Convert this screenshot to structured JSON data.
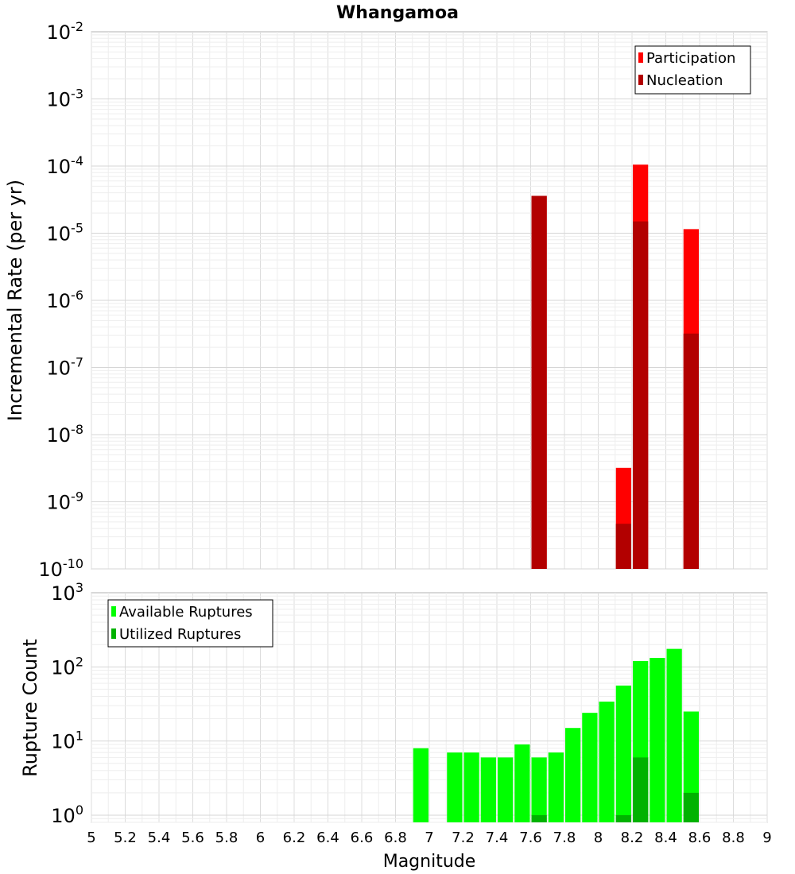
{
  "chart_data": [
    {
      "type": "bar",
      "title": "Whangamoa",
      "xlabel": "",
      "ylabel": "Incremental Rate (per yr)",
      "yscale": "log",
      "ylim": [
        1e-10,
        0.01
      ],
      "xlim": [
        5,
        9
      ],
      "bar_width": 0.1,
      "grid": true,
      "legend_position": "top-right",
      "series": [
        {
          "name": "Participation",
          "color": "#ff0000",
          "x": [
            7.65,
            8.15,
            8.25,
            8.55
          ],
          "values": [
            3.6e-05,
            3.2e-09,
            0.000105,
            1.15e-05
          ]
        },
        {
          "name": "Nucleation",
          "color": "#b20000",
          "x": [
            7.65,
            8.15,
            8.25,
            8.55
          ],
          "values": [
            3.6e-05,
            4.7e-10,
            1.5e-05,
            3.2e-07
          ]
        }
      ]
    },
    {
      "type": "bar",
      "title": "",
      "xlabel": "Magnitude",
      "ylabel": "Rupture Count",
      "yscale": "log",
      "ylim": [
        0.8,
        1000
      ],
      "xlim": [
        5,
        9
      ],
      "bar_width": 0.1,
      "grid": true,
      "legend_position": "top-left",
      "series": [
        {
          "name": "Available Ruptures",
          "color": "#00ff00",
          "x": [
            6.95,
            7.15,
            7.25,
            7.35,
            7.45,
            7.55,
            7.65,
            7.75,
            7.85,
            7.95,
            8.05,
            8.15,
            8.25,
            8.35,
            8.45,
            8.55
          ],
          "values": [
            8,
            7,
            7,
            6,
            6,
            9,
            6,
            7,
            15,
            24,
            34,
            56,
            120,
            132,
            175,
            25
          ]
        },
        {
          "name": "Utilized Ruptures",
          "color": "#00b200",
          "x": [
            7.65,
            8.15,
            8.25,
            8.55
          ],
          "values": [
            1,
            1,
            6,
            2
          ]
        }
      ]
    }
  ],
  "x_ticks": [
    "5",
    "5.2",
    "5.4",
    "5.6",
    "5.8",
    "6",
    "6.2",
    "6.4",
    "6.6",
    "6.8",
    "7",
    "7.2",
    "7.4",
    "7.6",
    "7.8",
    "8",
    "8.2",
    "8.4",
    "8.6",
    "8.8",
    "9"
  ],
  "top_y_ticks": [
    {
      "base": "10",
      "exp": "-2"
    },
    {
      "base": "10",
      "exp": "-3"
    },
    {
      "base": "10",
      "exp": "-4"
    },
    {
      "base": "10",
      "exp": "-5"
    },
    {
      "base": "10",
      "exp": "-6"
    },
    {
      "base": "10",
      "exp": "-7"
    },
    {
      "base": "10",
      "exp": "-8"
    },
    {
      "base": "10",
      "exp": "-9"
    },
    {
      "base": "10",
      "exp": "-10"
    }
  ],
  "bottom_y_ticks": [
    {
      "base": "10",
      "exp": "3"
    },
    {
      "base": "10",
      "exp": "2"
    },
    {
      "base": "10",
      "exp": "1"
    },
    {
      "base": "10",
      "exp": "0"
    }
  ]
}
